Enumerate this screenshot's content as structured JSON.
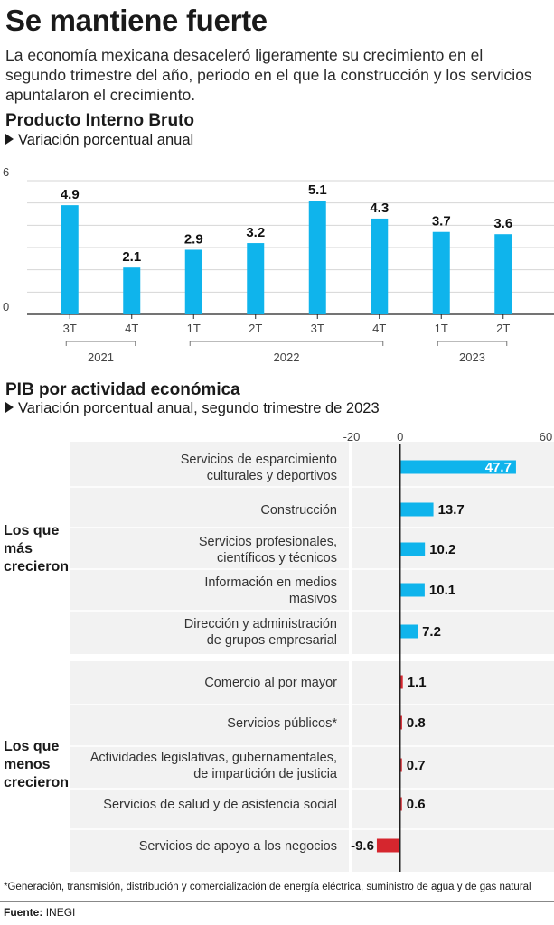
{
  "header": {
    "title": "Se mantiene fuerte",
    "intro": "La economía mexicana desaceleró ligeramente su crecimiento en el segundo trimestre del año, periodo en el que la construcción y los servicios apuntalaron el crecimiento."
  },
  "chart1": {
    "title": "Producto Interno Bruto",
    "subtitle": "Variación porcentual anual"
  },
  "chart2": {
    "title": "PIB por actividad económica",
    "subtitle": "Variación porcentual anual, segundo trimestre de 2023",
    "group_top": "Los que más crecieron",
    "group_bottom": "Los que menos crecieron"
  },
  "footnote": "*Generación, transmisión, distribución y comercialización de energía eléctrica, suministro de agua y de gas natural",
  "source": {
    "label": "Fuente:",
    "value": "INEGI"
  },
  "colors": {
    "positive": "#0fb4ec",
    "negative": "#d5262e",
    "grid": "#d6d6d6",
    "panel": "#f2f2f2"
  },
  "chart_data": [
    {
      "type": "bar",
      "categories": [
        "3T",
        "4T",
        "1T",
        "2T",
        "3T",
        "4T",
        "1T",
        "2T"
      ],
      "year_groups": [
        {
          "label": "2021",
          "from": 0,
          "to": 1
        },
        {
          "label": "2022",
          "from": 2,
          "to": 5
        },
        {
          "label": "2023",
          "from": 6,
          "to": 7
        }
      ],
      "values": [
        4.9,
        2.1,
        2.9,
        3.2,
        5.1,
        4.3,
        3.7,
        3.6
      ],
      "value_labels": [
        "4.9",
        "2.1",
        "2.9",
        "3.2",
        "5.1",
        "4.3",
        "3.7",
        "3.6"
      ],
      "ylim": [
        0,
        6
      ],
      "yticks": [
        0,
        6
      ],
      "grid": true
    },
    {
      "type": "bar",
      "orientation": "horizontal",
      "xlim": [
        -20,
        60
      ],
      "xticks": [
        -20,
        0,
        60
      ],
      "categories": [
        "Servicios de esparcimiento\nculturales y deportivos",
        "Construcción",
        "Servicios profesionales,\ncientíficos y técnicos",
        "Información en medios\nmasivos",
        "Dirección y administración\nde grupos empresarial",
        "Comercio al por mayor",
        "Servicios públicos*",
        "Actividades legislativas, gubernamentales,\nde impartición de justicia",
        "Servicios de salud y de asistencia social",
        "Servicios de apoyo a los negocios"
      ],
      "values": [
        47.7,
        13.7,
        10.2,
        10.1,
        7.2,
        1.1,
        0.8,
        0.7,
        0.6,
        -9.6
      ],
      "value_labels": [
        "47.7",
        "13.7",
        "10.2",
        "10.1",
        "7.2",
        "1.1",
        "0.8",
        "0.7",
        "0.6",
        "-9.6"
      ]
    }
  ]
}
